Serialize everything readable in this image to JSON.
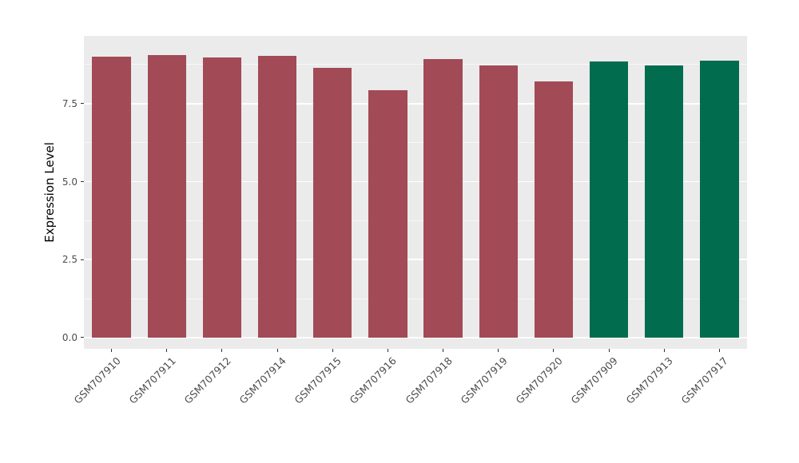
{
  "chart_data": {
    "type": "bar",
    "title": "",
    "xlabel": "",
    "ylabel": "Expression Level",
    "categories": [
      "GSM707910",
      "GSM707911",
      "GSM707912",
      "GSM707914",
      "GSM707915",
      "GSM707916",
      "GSM707918",
      "GSM707919",
      "GSM707920",
      "GSM707909",
      "GSM707913",
      "GSM707917"
    ],
    "values": [
      9.0,
      9.05,
      8.97,
      9.04,
      8.65,
      7.93,
      8.93,
      8.72,
      8.2,
      8.85,
      8.73,
      8.88
    ],
    "bar_colors": [
      "#A24A56",
      "#A24A56",
      "#A24A56",
      "#A24A56",
      "#A24A56",
      "#A24A56",
      "#A24A56",
      "#A24A56",
      "#A24A56",
      "#026C4F",
      "#026C4F",
      "#026C4F"
    ],
    "group_colors": {
      "red_group": "#A24A56",
      "green_group": "#026C4F"
    },
    "ylim": [
      0,
      9.67
    ],
    "yticks": [
      0,
      2.5,
      5,
      7.5
    ],
    "ytick_labels": [
      "0.0",
      "2.5",
      "5.0",
      "7.5"
    ],
    "yminorticks": [
      1.25,
      3.75,
      6.25,
      8.75
    ],
    "panel_background": "#EBEBEB",
    "gridline_color": "#FFFFFF",
    "grid": "major and minor horizontal gridlines",
    "legend_position": "none",
    "x_label_rotation": 45
  }
}
